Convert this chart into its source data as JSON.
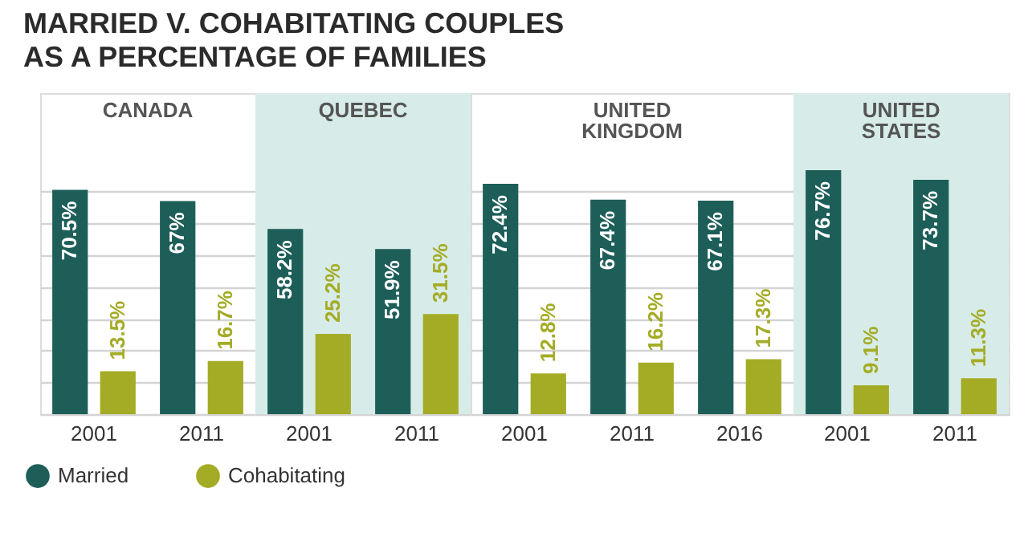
{
  "chart_data": [
    {
      "type": "bar",
      "title": "MARRIED V. COHABITATING COUPLES\nAS A PERCENTAGE OF FAMILIES",
      "annotations": [
        "CANADA"
      ],
      "categories": [
        "2001",
        "2011"
      ],
      "series": [
        {
          "name": "Married",
          "color": "#1d5e59",
          "values": [
            70.5,
            67
          ],
          "value_labels": [
            "70.5%",
            "67%"
          ]
        },
        {
          "name": "Cohabitating",
          "color": "#a4ac26",
          "values": [
            13.5,
            16.7
          ],
          "value_labels": [
            "13.5%",
            "16.7%"
          ]
        }
      ],
      "grid": "y",
      "tick_labels": "x",
      "legend": "bottom"
    },
    {
      "type": "bar",
      "annotations": [
        "QUEBEC"
      ],
      "categories": [
        "2001",
        "2011"
      ],
      "series": [
        {
          "name": "Married",
          "color": "#1d5e59",
          "values": [
            58.2,
            51.9
          ],
          "value_labels": [
            "58.2%",
            "51.9%"
          ]
        },
        {
          "name": "Cohabitating",
          "color": "#a4ac26",
          "values": [
            25.2,
            31.5
          ],
          "value_labels": [
            "25.2%",
            "31.5%"
          ]
        }
      ],
      "bands": [
        {
          "axis": "x",
          "from": "2001",
          "to": "2011",
          "color": "#d7ece8"
        }
      ],
      "grid": "y",
      "tick_labels": "x"
    },
    {
      "type": "bar",
      "annotations": [
        "UNITED KINGDOM"
      ],
      "categories": [
        "2001",
        "2011",
        "2016"
      ],
      "series": [
        {
          "name": "Married",
          "color": "#1d5e59",
          "values": [
            72.4,
            67.4,
            67.1
          ],
          "value_labels": [
            "72.4%",
            "67.4%",
            "67.1%"
          ]
        },
        {
          "name": "Cohabitating",
          "color": "#a4ac26",
          "values": [
            12.8,
            16.2,
            17.3
          ],
          "value_labels": [
            "12.8%",
            "16.2%",
            "17.3%"
          ]
        }
      ],
      "grid": "y",
      "tick_labels": "x"
    },
    {
      "type": "bar",
      "annotations": [
        "UNITED STATES"
      ],
      "categories": [
        "2001",
        "2011"
      ],
      "series": [
        {
          "name": "Married",
          "color": "#1d5e59",
          "values": [
            76.7,
            73.7
          ],
          "value_labels": [
            "76.7%",
            "73.7%"
          ]
        },
        {
          "name": "Cohabitating",
          "color": "#a4ac26",
          "values": [
            9.1,
            11.3
          ],
          "value_labels": [
            "9.1%",
            "11.3%"
          ]
        }
      ],
      "bands": [
        {
          "axis": "x",
          "from": "2001",
          "to": "2011",
          "color": "#d7ece8"
        }
      ],
      "grid": "y",
      "tick_labels": "x"
    }
  ]
}
